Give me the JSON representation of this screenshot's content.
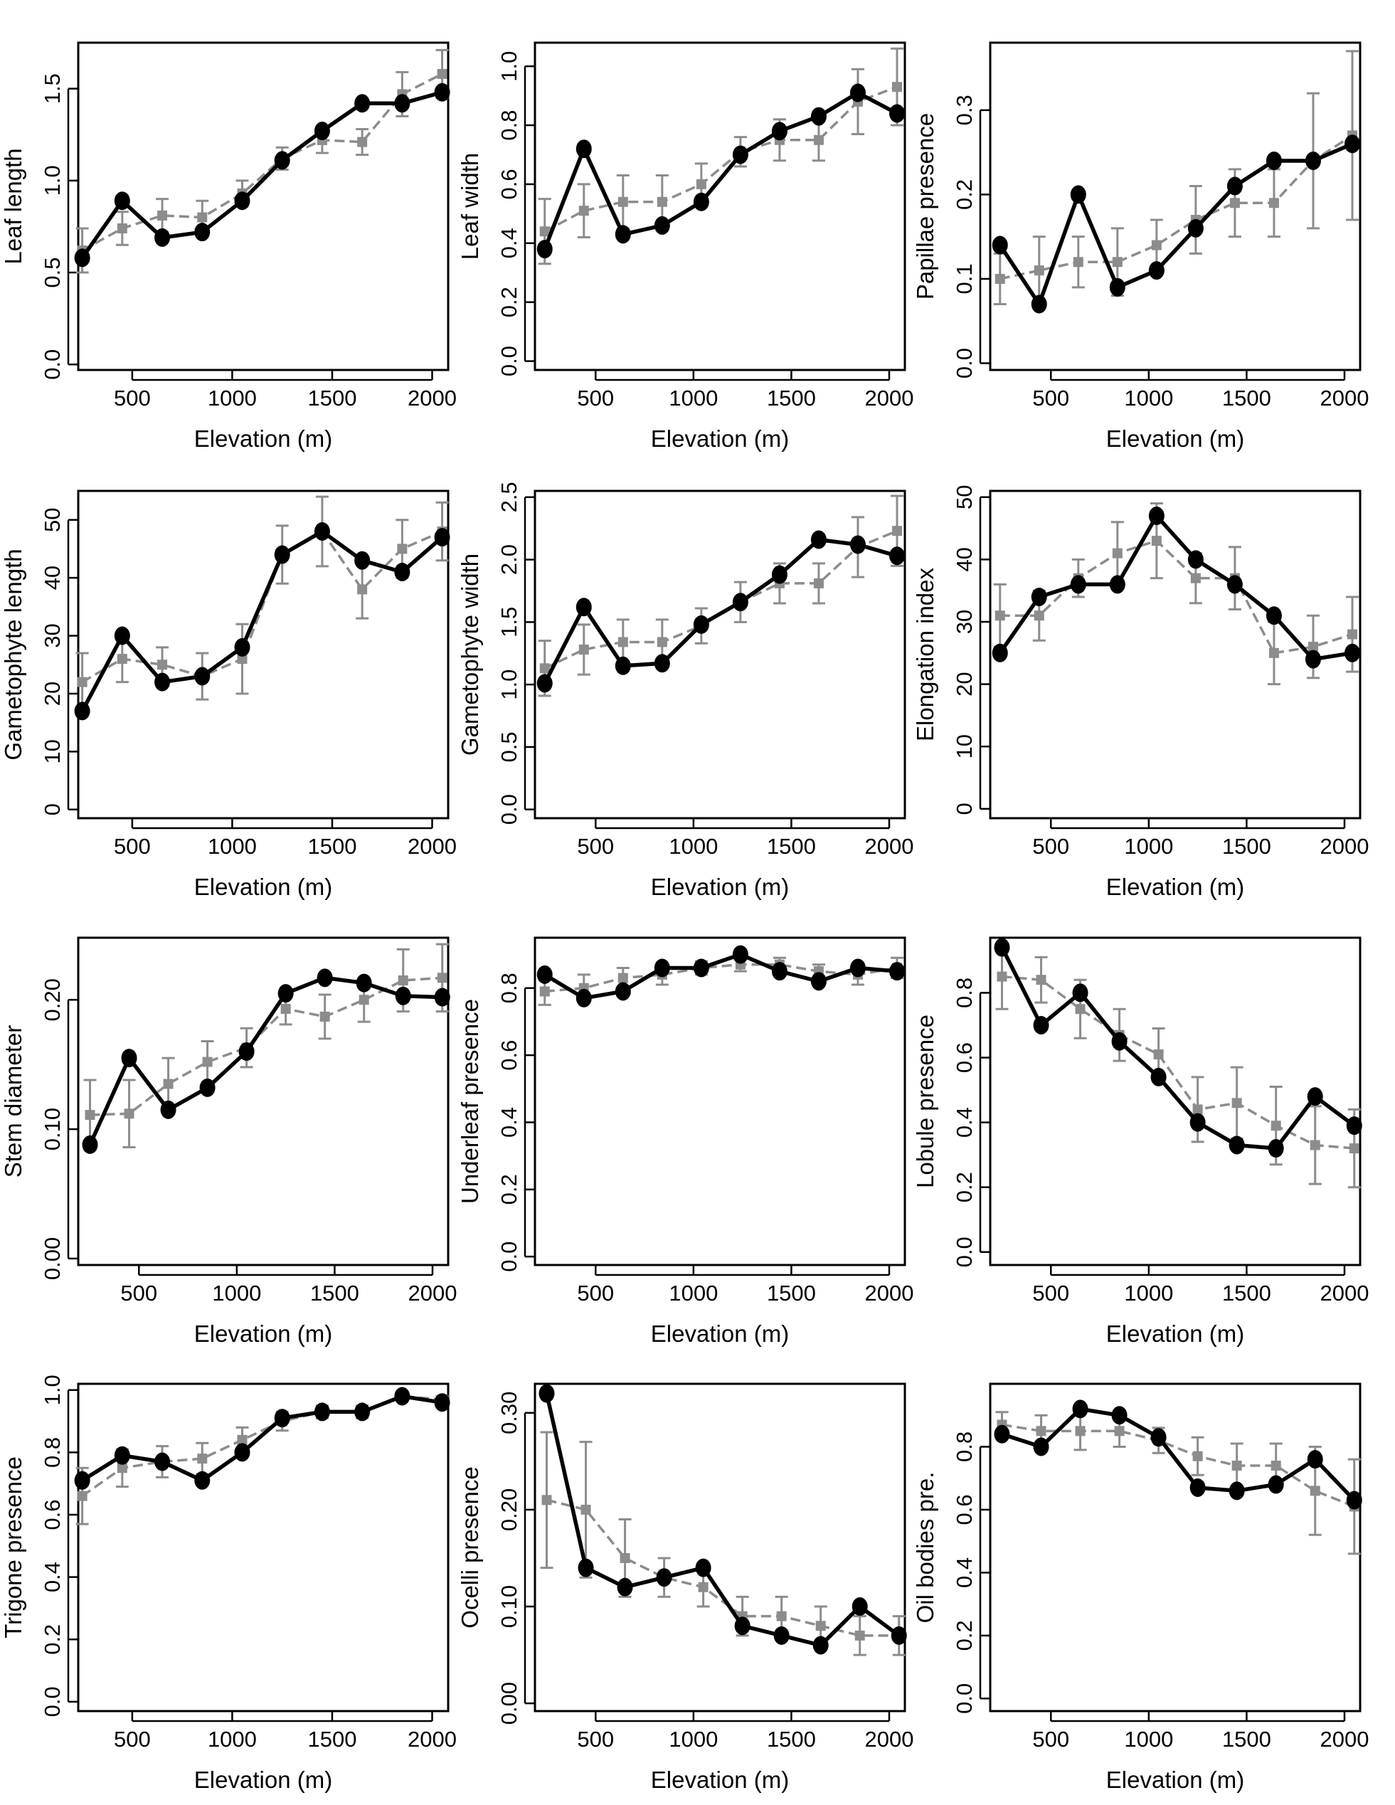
{
  "chart_data": [
    {
      "type": "line",
      "ylabel": "Leaf length",
      "xlabel": "Elevation (m)",
      "xlim": [
        230,
        2080
      ],
      "ylim": [
        -0.03,
        1.75
      ],
      "xticks": [
        500,
        1000,
        1500,
        2000
      ],
      "yticks": [
        0.0,
        0.5,
        1.0,
        1.5
      ],
      "ytick_labels": [
        "0.0",
        "0.5",
        "1.0",
        "1.5"
      ],
      "series": [
        {
          "style": "dark",
          "x": [
            250,
            450,
            650,
            850,
            1050,
            1250,
            1450,
            1650,
            1850,
            2050
          ],
          "y": [
            0.58,
            0.89,
            0.69,
            0.72,
            0.89,
            1.11,
            1.27,
            1.42,
            1.42,
            1.48
          ]
        },
        {
          "style": "gray",
          "x": [
            250,
            450,
            650,
            850,
            1050,
            1250,
            1450,
            1650,
            1850,
            2050
          ],
          "y": [
            0.62,
            0.74,
            0.81,
            0.8,
            0.93,
            1.12,
            1.22,
            1.21,
            1.47,
            1.58
          ],
          "err": [
            0.12,
            0.09,
            0.09,
            0.09,
            0.07,
            0.06,
            0.07,
            0.07,
            0.12,
            0.13
          ]
        }
      ]
    },
    {
      "type": "line",
      "ylabel": "Leaf width",
      "xlabel": "Elevation (m)",
      "xlim": [
        190,
        2080
      ],
      "ylim": [
        -0.03,
        1.08
      ],
      "xticks": [
        500,
        1000,
        1500,
        2000
      ],
      "yticks": [
        0.0,
        0.2,
        0.4,
        0.6,
        0.8,
        1.0
      ],
      "ytick_labels": [
        "0.0",
        "0.2",
        "0.4",
        "0.6",
        "0.8",
        "1.0"
      ],
      "series": [
        {
          "style": "dark",
          "x": [
            240,
            440,
            640,
            840,
            1040,
            1240,
            1440,
            1640,
            1840,
            2040
          ],
          "y": [
            0.38,
            0.72,
            0.43,
            0.46,
            0.54,
            0.7,
            0.78,
            0.83,
            0.91,
            0.84
          ]
        },
        {
          "style": "gray",
          "x": [
            240,
            440,
            640,
            840,
            1040,
            1240,
            1440,
            1640,
            1840,
            2040
          ],
          "y": [
            0.44,
            0.51,
            0.54,
            0.54,
            0.6,
            0.71,
            0.75,
            0.75,
            0.88,
            0.93
          ],
          "err": [
            0.11,
            0.09,
            0.09,
            0.09,
            0.07,
            0.05,
            0.07,
            0.07,
            0.11,
            0.13
          ]
        }
      ]
    },
    {
      "type": "line",
      "ylabel": "Papillae presence",
      "xlabel": "Elevation (m)",
      "xlim": [
        190,
        2080
      ],
      "ylim": [
        -0.008,
        0.38
      ],
      "xticks": [
        500,
        1000,
        1500,
        2000
      ],
      "yticks": [
        0.0,
        0.1,
        0.2,
        0.3
      ],
      "ytick_labels": [
        "0.0",
        "0.1",
        "0.2",
        "0.3"
      ],
      "series": [
        {
          "style": "dark",
          "x": [
            240,
            440,
            640,
            840,
            1040,
            1240,
            1440,
            1640,
            1840,
            2040
          ],
          "y": [
            0.14,
            0.07,
            0.2,
            0.09,
            0.11,
            0.16,
            0.21,
            0.24,
            0.24,
            0.26
          ]
        },
        {
          "style": "gray",
          "x": [
            240,
            440,
            640,
            840,
            1040,
            1240,
            1440,
            1640,
            1840,
            2040
          ],
          "y": [
            0.1,
            0.11,
            0.12,
            0.12,
            0.14,
            0.17,
            0.19,
            0.19,
            0.24,
            0.27
          ],
          "err": [
            0.03,
            0.04,
            0.03,
            0.04,
            0.03,
            0.04,
            0.04,
            0.04,
            0.08,
            0.1
          ]
        }
      ]
    },
    {
      "type": "line",
      "ylabel": "Gametophyte length",
      "xlabel": "Elevation (m)",
      "xlim": [
        230,
        2080
      ],
      "ylim": [
        -1.5,
        55
      ],
      "xticks": [
        500,
        1000,
        1500,
        2000
      ],
      "yticks": [
        0,
        10,
        20,
        30,
        40,
        50
      ],
      "ytick_labels": [
        "0",
        "10",
        "20",
        "30",
        "40",
        "50"
      ],
      "series": [
        {
          "style": "dark",
          "x": [
            250,
            450,
            650,
            850,
            1050,
            1250,
            1450,
            1650,
            1850,
            2050
          ],
          "y": [
            17,
            30,
            22,
            23,
            28,
            44,
            48,
            43,
            41,
            47
          ]
        },
        {
          "style": "gray",
          "x": [
            250,
            450,
            650,
            850,
            1050,
            1250,
            1450,
            1650,
            1850,
            2050
          ],
          "y": [
            22,
            26,
            25,
            23,
            26,
            44,
            48,
            38,
            45,
            48
          ],
          "err": [
            5,
            4,
            3,
            4,
            6,
            5,
            6,
            5,
            5,
            5
          ]
        }
      ]
    },
    {
      "type": "line",
      "ylabel": "Gametophyte width",
      "xlabel": "Elevation (m)",
      "xlim": [
        190,
        2080
      ],
      "ylim": [
        -0.07,
        2.55
      ],
      "xticks": [
        500,
        1000,
        1500,
        2000
      ],
      "yticks": [
        0.0,
        0.5,
        1.0,
        1.5,
        2.0,
        2.5
      ],
      "ytick_labels": [
        "0.0",
        "0.5",
        "1.0",
        "1.5",
        "2.0",
        "2.5"
      ],
      "series": [
        {
          "style": "dark",
          "x": [
            240,
            440,
            640,
            840,
            1040,
            1240,
            1440,
            1640,
            1840,
            2040
          ],
          "y": [
            1.01,
            1.62,
            1.15,
            1.17,
            1.48,
            1.66,
            1.88,
            2.16,
            2.12,
            2.03
          ]
        },
        {
          "style": "gray",
          "x": [
            240,
            440,
            640,
            840,
            1040,
            1240,
            1440,
            1640,
            1840,
            2040
          ],
          "y": [
            1.13,
            1.28,
            1.34,
            1.34,
            1.47,
            1.66,
            1.81,
            1.81,
            2.1,
            2.23
          ],
          "err": [
            0.22,
            0.2,
            0.18,
            0.18,
            0.14,
            0.16,
            0.16,
            0.16,
            0.24,
            0.28
          ]
        }
      ]
    },
    {
      "type": "line",
      "ylabel": "Elongation index",
      "xlabel": "Elevation (m)",
      "xlim": [
        190,
        2080
      ],
      "ylim": [
        -1.5,
        51
      ],
      "xticks": [
        500,
        1000,
        1500,
        2000
      ],
      "yticks": [
        0,
        10,
        20,
        30,
        40,
        50
      ],
      "ytick_labels": [
        "0",
        "10",
        "20",
        "30",
        "40",
        "50"
      ],
      "series": [
        {
          "style": "dark",
          "x": [
            240,
            440,
            640,
            840,
            1040,
            1240,
            1440,
            1640,
            1840,
            2040
          ],
          "y": [
            25,
            34,
            36,
            36,
            47,
            40,
            36,
            31,
            24,
            25
          ]
        },
        {
          "style": "gray",
          "x": [
            240,
            440,
            640,
            840,
            1040,
            1240,
            1440,
            1640,
            1840,
            2040
          ],
          "y": [
            31,
            31,
            37,
            41,
            43,
            37,
            37,
            25,
            26,
            28
          ],
          "err": [
            5,
            4,
            3,
            5,
            6,
            4,
            5,
            5,
            5,
            6
          ]
        }
      ]
    },
    {
      "type": "line",
      "ylabel": "Stem diameter",
      "xlabel": "Elevation (m)",
      "xlim": [
        190,
        2080
      ],
      "ylim": [
        -0.005,
        0.248
      ],
      "xticks": [
        500,
        1000,
        1500,
        2000
      ],
      "yticks": [
        0.0,
        0.1,
        0.2
      ],
      "ytick_labels": [
        "0.00",
        "0.10",
        "0.20"
      ],
      "series": [
        {
          "style": "dark",
          "x": [
            250,
            450,
            650,
            850,
            1050,
            1250,
            1450,
            1650,
            1850,
            2050
          ],
          "y": [
            0.088,
            0.155,
            0.115,
            0.132,
            0.16,
            0.205,
            0.217,
            0.213,
            0.203,
            0.202
          ]
        },
        {
          "style": "gray",
          "x": [
            250,
            450,
            650,
            850,
            1050,
            1250,
            1450,
            1650,
            1850,
            2050
          ],
          "y": [
            0.111,
            0.112,
            0.135,
            0.152,
            0.163,
            0.193,
            0.187,
            0.2,
            0.215,
            0.217
          ],
          "err": [
            0.027,
            0.026,
            0.02,
            0.016,
            0.015,
            0.012,
            0.017,
            0.017,
            0.024,
            0.026
          ]
        }
      ]
    },
    {
      "type": "line",
      "ylabel": "Underleaf presence",
      "xlabel": "Elevation (m)",
      "xlim": [
        190,
        2080
      ],
      "ylim": [
        -0.025,
        0.95
      ],
      "xticks": [
        500,
        1000,
        1500,
        2000
      ],
      "yticks": [
        0.0,
        0.2,
        0.4,
        0.6,
        0.8
      ],
      "ytick_labels": [
        "0.0",
        "0.2",
        "0.4",
        "0.6",
        "0.8"
      ],
      "series": [
        {
          "style": "dark",
          "x": [
            240,
            440,
            640,
            840,
            1040,
            1240,
            1440,
            1640,
            1840,
            2040
          ],
          "y": [
            0.84,
            0.77,
            0.79,
            0.86,
            0.86,
            0.9,
            0.85,
            0.82,
            0.86,
            0.85
          ]
        },
        {
          "style": "gray",
          "x": [
            240,
            440,
            640,
            840,
            1040,
            1240,
            1440,
            1640,
            1840,
            2040
          ],
          "y": [
            0.79,
            0.8,
            0.83,
            0.84,
            0.86,
            0.87,
            0.87,
            0.85,
            0.84,
            0.86
          ],
          "err": [
            0.04,
            0.04,
            0.03,
            0.03,
            0.02,
            0.02,
            0.02,
            0.02,
            0.03,
            0.03
          ]
        }
      ]
    },
    {
      "type": "line",
      "ylabel": "Lobule presence",
      "xlabel": "Elevation (m)",
      "xlim": [
        190,
        2080
      ],
      "ylim": [
        -0.04,
        0.97
      ],
      "xticks": [
        500,
        1000,
        1500,
        2000
      ],
      "yticks": [
        0.0,
        0.2,
        0.4,
        0.6,
        0.8
      ],
      "ytick_labels": [
        "0.0",
        "0.2",
        "0.4",
        "0.6",
        "0.8"
      ],
      "series": [
        {
          "style": "dark",
          "x": [
            250,
            450,
            650,
            850,
            1050,
            1250,
            1450,
            1650,
            1850,
            2050
          ],
          "y": [
            0.94,
            0.7,
            0.8,
            0.65,
            0.54,
            0.4,
            0.33,
            0.32,
            0.48,
            0.39
          ]
        },
        {
          "style": "gray",
          "x": [
            250,
            450,
            650,
            850,
            1050,
            1250,
            1450,
            1650,
            1850,
            2050
          ],
          "y": [
            0.85,
            0.84,
            0.75,
            0.67,
            0.61,
            0.44,
            0.46,
            0.39,
            0.33,
            0.32
          ],
          "err": [
            0.1,
            0.07,
            0.09,
            0.08,
            0.08,
            0.1,
            0.11,
            0.12,
            0.12,
            0.12
          ]
        }
      ]
    },
    {
      "type": "line",
      "ylabel": "Trigone presence",
      "xlabel": "Elevation (m)",
      "xlim": [
        230,
        2080
      ],
      "ylim": [
        -0.03,
        1.02
      ],
      "xticks": [
        500,
        1000,
        1500,
        2000
      ],
      "yticks": [
        0.0,
        0.2,
        0.4,
        0.6,
        0.8,
        1.0
      ],
      "ytick_labels": [
        "0.0",
        "0.2",
        "0.4",
        "0.6",
        "0.8",
        "1.0"
      ],
      "series": [
        {
          "style": "dark",
          "x": [
            250,
            450,
            650,
            850,
            1050,
            1250,
            1450,
            1650,
            1850,
            2050
          ],
          "y": [
            0.71,
            0.79,
            0.77,
            0.71,
            0.8,
            0.91,
            0.93,
            0.93,
            0.98,
            0.96
          ]
        },
        {
          "style": "gray",
          "x": [
            250,
            450,
            650,
            850,
            1050,
            1250,
            1450,
            1650,
            1850,
            2050
          ],
          "y": [
            0.66,
            0.75,
            0.77,
            0.78,
            0.84,
            0.9,
            0.93,
            0.93,
            0.98,
            0.97
          ],
          "err": [
            0.09,
            0.06,
            0.05,
            0.05,
            0.04,
            0.03,
            0.02,
            0.02,
            0.01,
            0.01
          ]
        }
      ]
    },
    {
      "type": "line",
      "ylabel": "Ocelli presence",
      "xlabel": "Elevation (m)",
      "xlim": [
        190,
        2080
      ],
      "ylim": [
        -0.008,
        0.33
      ],
      "xticks": [
        500,
        1000,
        1500,
        2000
      ],
      "yticks": [
        0.0,
        0.1,
        0.2,
        0.3
      ],
      "ytick_labels": [
        "0.00",
        "0.10",
        "0.20",
        "0.30"
      ],
      "series": [
        {
          "style": "dark",
          "x": [
            250,
            450,
            650,
            850,
            1050,
            1250,
            1450,
            1650,
            1850,
            2050
          ],
          "y": [
            0.32,
            0.14,
            0.12,
            0.13,
            0.14,
            0.08,
            0.07,
            0.06,
            0.1,
            0.07
          ]
        },
        {
          "style": "gray",
          "x": [
            250,
            450,
            650,
            850,
            1050,
            1250,
            1450,
            1650,
            1850,
            2050
          ],
          "y": [
            0.21,
            0.2,
            0.15,
            0.13,
            0.12,
            0.09,
            0.09,
            0.08,
            0.07,
            0.07
          ],
          "err": [
            0.07,
            0.07,
            0.04,
            0.02,
            0.02,
            0.02,
            0.02,
            0.02,
            0.02,
            0.02
          ]
        }
      ]
    },
    {
      "type": "line",
      "ylabel": "Oil bodies pre.",
      "xlabel": "Elevation (m)",
      "xlim": [
        190,
        2080
      ],
      "ylim": [
        -0.04,
        1.0
      ],
      "xticks": [
        500,
        1000,
        1500,
        2000
      ],
      "yticks": [
        0.0,
        0.2,
        0.4,
        0.6,
        0.8
      ],
      "ytick_labels": [
        "0.0",
        "0.2",
        "0.4",
        "0.6",
        "0.8"
      ],
      "series": [
        {
          "style": "dark",
          "x": [
            250,
            450,
            650,
            850,
            1050,
            1250,
            1450,
            1650,
            1850,
            2050
          ],
          "y": [
            0.84,
            0.8,
            0.92,
            0.9,
            0.83,
            0.67,
            0.66,
            0.68,
            0.76,
            0.63
          ]
        },
        {
          "style": "gray",
          "x": [
            250,
            450,
            650,
            850,
            1050,
            1250,
            1450,
            1650,
            1850,
            2050
          ],
          "y": [
            0.87,
            0.85,
            0.85,
            0.85,
            0.82,
            0.77,
            0.74,
            0.74,
            0.66,
            0.61
          ],
          "err": [
            0.04,
            0.05,
            0.06,
            0.05,
            0.04,
            0.06,
            0.07,
            0.07,
            0.14,
            0.15
          ]
        }
      ]
    }
  ]
}
